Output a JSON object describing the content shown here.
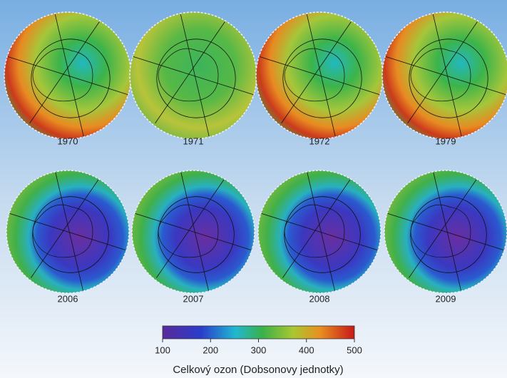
{
  "maps": [
    {
      "year": "1970"
    },
    {
      "year": "1971"
    },
    {
      "year": "1972"
    },
    {
      "year": "1979"
    },
    {
      "year": "2006"
    },
    {
      "year": "2007"
    },
    {
      "year": "2008"
    },
    {
      "year": "2009"
    }
  ],
  "colorbar": {
    "lim": [
      100,
      500
    ],
    "ticks": [
      100,
      200,
      300,
      400,
      500
    ],
    "label": "Celkový ozon (Dobsonovy jednotky)"
  }
}
